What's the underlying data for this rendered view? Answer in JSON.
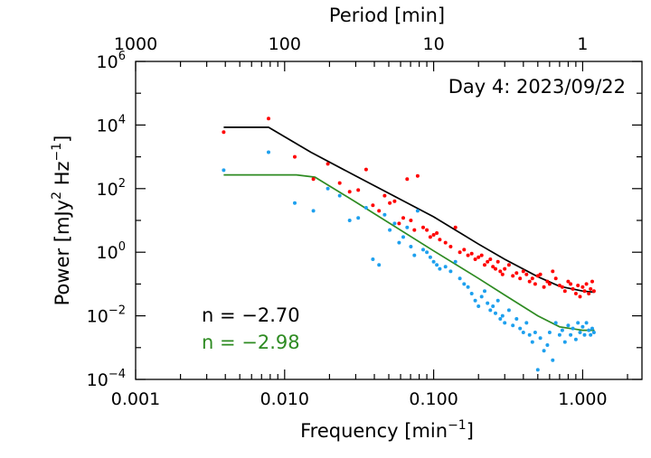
{
  "chart_data": {
    "type": "scatter",
    "title": "",
    "annotation": "Day 4: 2023/09/22",
    "xlabel": "Frequency [min",
    "xlabel_sup": "−1",
    "xlabel_tail": "]",
    "top_xlabel": "Period [min]",
    "ylabel": "Power [mJy",
    "ylabel_sup1": "2",
    "ylabel_mid": " Hz",
    "ylabel_sup2": "−1",
    "ylabel_tail": "]",
    "xscale": "log",
    "yscale": "log",
    "xlim": [
      0.001,
      2.5
    ],
    "ylim": [
      0.0001,
      1000000
    ],
    "x_ticks": [
      {
        "value": 0.001,
        "label": "0.001"
      },
      {
        "value": 0.01,
        "label": "0.010"
      },
      {
        "value": 0.1,
        "label": "0.100"
      },
      {
        "value": 1.0,
        "label": "1.000"
      }
    ],
    "top_ticks": [
      {
        "period": 1000,
        "label": "1000"
      },
      {
        "period": 100,
        "label": "100"
      },
      {
        "period": 10,
        "label": "10"
      },
      {
        "period": 1,
        "label": "1"
      }
    ],
    "y_ticks": [
      {
        "value": 0.0001,
        "base": "10",
        "exp": "−4"
      },
      {
        "value": 0.01,
        "base": "10",
        "exp": "−2"
      },
      {
        "value": 1,
        "base": "10",
        "exp": "0"
      },
      {
        "value": 100,
        "base": "10",
        "exp": "2"
      },
      {
        "value": 10000,
        "base": "10",
        "exp": "4"
      },
      {
        "value": 1000000,
        "base": "10",
        "exp": "6"
      }
    ],
    "fits": [
      {
        "label": "n = −2.70",
        "color": "#000000",
        "x": [
          0.0039,
          0.0078,
          0.015,
          0.03,
          0.1,
          0.2,
          0.3,
          0.5,
          0.7,
          1.0,
          1.2
        ],
        "y": [
          8500,
          8500,
          1400,
          250,
          13,
          1.8,
          0.6,
          0.17,
          0.085,
          0.06,
          0.055
        ]
      },
      {
        "label": "n = −2.98",
        "color": "#2e8b22",
        "x": [
          0.0039,
          0.012,
          0.016,
          0.03,
          0.1,
          0.2,
          0.3,
          0.5,
          0.7,
          1.0,
          1.2
        ],
        "y": [
          270,
          270,
          230,
          38,
          1.1,
          0.15,
          0.045,
          0.01,
          0.0045,
          0.0035,
          0.0035
        ]
      }
    ],
    "series": [
      {
        "color": "#ff0000",
        "x": [
          0.0039,
          0.0078,
          0.0117,
          0.0156,
          0.0195,
          0.0234,
          0.0273,
          0.0312,
          0.0352,
          0.0391,
          0.043,
          0.0469,
          0.0508,
          0.0547,
          0.0586,
          0.0625,
          0.0664,
          0.0703,
          0.0742,
          0.0781,
          0.085,
          0.09,
          0.095,
          0.1,
          0.105,
          0.11,
          0.12,
          0.13,
          0.14,
          0.15,
          0.16,
          0.17,
          0.18,
          0.19,
          0.2,
          0.21,
          0.22,
          0.23,
          0.24,
          0.25,
          0.26,
          0.27,
          0.28,
          0.29,
          0.3,
          0.32,
          0.34,
          0.36,
          0.38,
          0.4,
          0.42,
          0.44,
          0.46,
          0.48,
          0.5,
          0.52,
          0.55,
          0.58,
          0.6,
          0.63,
          0.66,
          0.7,
          0.73,
          0.76,
          0.8,
          0.83,
          0.86,
          0.9,
          0.93,
          0.96,
          1.0,
          1.03,
          1.06,
          1.1,
          1.13,
          1.16,
          1.19
        ],
        "y": [
          6000,
          16000,
          1000,
          200,
          600,
          150,
          80,
          90,
          400,
          30,
          20,
          60,
          35,
          40,
          8,
          12,
          200,
          10,
          5,
          250,
          6,
          5,
          3,
          3.5,
          4,
          2.5,
          2,
          1.5,
          6,
          1,
          1.2,
          0.8,
          0.9,
          0.6,
          0.7,
          0.8,
          0.4,
          0.5,
          0.6,
          0.35,
          0.3,
          0.5,
          0.25,
          0.2,
          0.3,
          0.4,
          0.18,
          0.22,
          0.15,
          0.25,
          0.2,
          0.12,
          0.15,
          0.1,
          0.18,
          0.2,
          0.08,
          0.12,
          0.1,
          0.25,
          0.15,
          0.09,
          0.08,
          0.06,
          0.12,
          0.1,
          0.07,
          0.05,
          0.09,
          0.04,
          0.08,
          0.06,
          0.1,
          0.05,
          0.07,
          0.12,
          0.06
        ]
      },
      {
        "color": "#1ea0ee",
        "x": [
          0.0039,
          0.0078,
          0.0117,
          0.0156,
          0.0195,
          0.0234,
          0.0273,
          0.0312,
          0.0352,
          0.0391,
          0.043,
          0.0469,
          0.0508,
          0.0547,
          0.0586,
          0.0625,
          0.0664,
          0.0703,
          0.0742,
          0.0781,
          0.085,
          0.09,
          0.095,
          0.1,
          0.105,
          0.11,
          0.12,
          0.13,
          0.14,
          0.15,
          0.16,
          0.17,
          0.18,
          0.19,
          0.2,
          0.21,
          0.22,
          0.23,
          0.24,
          0.25,
          0.26,
          0.27,
          0.28,
          0.29,
          0.3,
          0.32,
          0.34,
          0.36,
          0.38,
          0.4,
          0.42,
          0.44,
          0.46,
          0.48,
          0.5,
          0.52,
          0.55,
          0.58,
          0.6,
          0.63,
          0.66,
          0.7,
          0.73,
          0.76,
          0.8,
          0.83,
          0.86,
          0.9,
          0.93,
          0.96,
          1.0,
          1.03,
          1.06,
          1.1,
          1.13,
          1.16,
          1.19
        ],
        "y": [
          380,
          1400,
          35,
          20,
          100,
          60,
          10,
          12,
          25,
          0.6,
          0.4,
          15,
          5,
          8,
          2,
          3,
          6,
          1.5,
          0.8,
          20,
          1.2,
          1,
          0.7,
          0.5,
          0.4,
          0.3,
          0.35,
          0.25,
          0.5,
          0.15,
          0.1,
          0.08,
          0.05,
          0.03,
          0.02,
          0.04,
          0.06,
          0.025,
          0.015,
          0.02,
          0.012,
          0.03,
          0.008,
          0.01,
          0.006,
          0.015,
          0.005,
          0.008,
          0.004,
          0.003,
          0.006,
          0.0025,
          0.0015,
          0.003,
          0.0002,
          0.002,
          0.0008,
          0.0012,
          0.003,
          0.0004,
          0.006,
          0.0025,
          0.0035,
          0.0015,
          0.005,
          0.0025,
          0.004,
          0.0018,
          0.006,
          0.003,
          0.0045,
          0.0025,
          0.006,
          0.0035,
          0.0025,
          0.004,
          0.003
        ]
      }
    ]
  }
}
